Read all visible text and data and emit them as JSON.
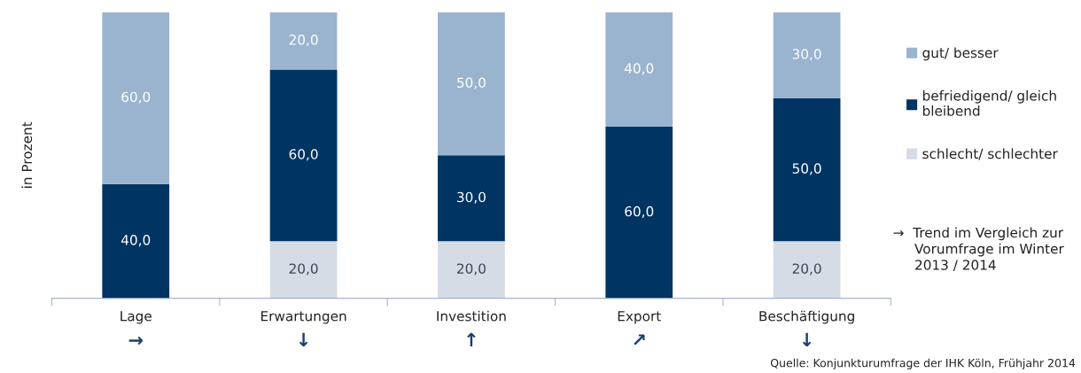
{
  "chart_data": {
    "type": "bar",
    "stacked": true,
    "ylabel": "in Prozent",
    "categories": [
      "Lage",
      "Erwartungen",
      "Investition",
      "Export",
      "Beschäftigung"
    ],
    "series": [
      {
        "name": "schlecht/ schlechter",
        "color": "#d5dce5",
        "values": [
          0,
          20,
          20,
          0,
          20
        ],
        "value_labels": [
          null,
          "20,0",
          "20,0",
          null,
          "20,0"
        ]
      },
      {
        "name": "befriedigend/ gleich\nbleibend",
        "color": "#003462",
        "values": [
          40,
          60,
          30,
          60,
          50
        ],
        "value_labels": [
          "40,0",
          "60,0",
          "30,0",
          "60,0",
          "50,0"
        ]
      },
      {
        "name": "gut/ besser",
        "color": "#9ab3cf",
        "values": [
          60,
          20,
          50,
          40,
          30
        ],
        "value_labels": [
          "60,0",
          "20,0",
          "50,0",
          "40,0",
          "30,0"
        ]
      }
    ],
    "ylim": [
      0,
      100
    ],
    "tick_labels": "x",
    "grid": false,
    "legend": "right",
    "annotations": [
      "→",
      "↓",
      "↑",
      "↗",
      "↓",
      "→  Trend im Vergleich zur\n     Vorumfrage im Winter\n     2013 / 2014",
      "Quelle: Konjunkturumfrage der IHK Köln, Frühjahr 2014"
    ]
  }
}
